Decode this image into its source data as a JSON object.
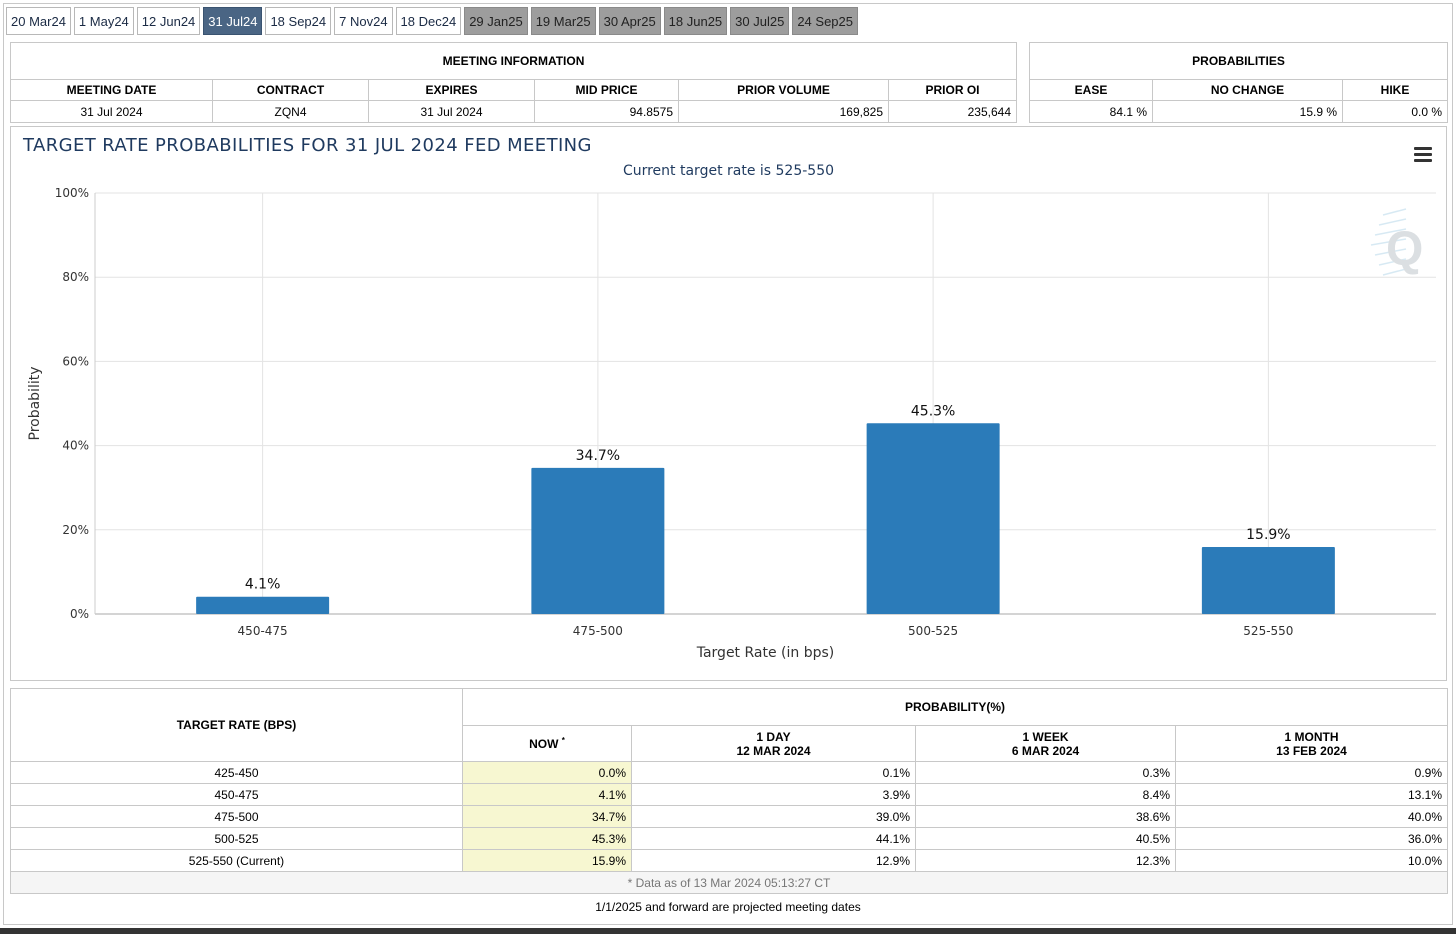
{
  "tabs": [
    {
      "label": "20 Mar24",
      "state": "normal"
    },
    {
      "label": "1 May24",
      "state": "normal"
    },
    {
      "label": "12 Jun24",
      "state": "normal"
    },
    {
      "label": "31 Jul24",
      "state": "active"
    },
    {
      "label": "18 Sep24",
      "state": "normal"
    },
    {
      "label": "7 Nov24",
      "state": "normal"
    },
    {
      "label": "18 Dec24",
      "state": "normal"
    },
    {
      "label": "29 Jan25",
      "state": "projected"
    },
    {
      "label": "19 Mar25",
      "state": "projected"
    },
    {
      "label": "30 Apr25",
      "state": "projected"
    },
    {
      "label": "18 Jun25",
      "state": "projected"
    },
    {
      "label": "30 Jul25",
      "state": "projected"
    },
    {
      "label": "24 Sep25",
      "state": "projected"
    }
  ],
  "meeting_info": {
    "title": "MEETING INFORMATION",
    "headers": [
      "MEETING DATE",
      "CONTRACT",
      "EXPIRES",
      "MID PRICE",
      "PRIOR VOLUME",
      "PRIOR OI"
    ],
    "values": [
      "31 Jul 2024",
      "ZQN4",
      "31 Jul 2024",
      "94.8575",
      "169,825",
      "235,644"
    ]
  },
  "probabilities": {
    "title": "PROBABILITIES",
    "headers": [
      "EASE",
      "NO CHANGE",
      "HIKE"
    ],
    "values": [
      "84.1 %",
      "15.9 %",
      "0.0 %"
    ]
  },
  "chart_data": {
    "type": "bar",
    "title": "TARGET RATE PROBABILITIES FOR 31 JUL 2024 FED MEETING",
    "subtitle": "Current target rate is 525-550",
    "xlabel": "Target Rate (in bps)",
    "ylabel": "Probability",
    "categories": [
      "450-475",
      "475-500",
      "500-525",
      "525-550"
    ],
    "values": [
      4.1,
      34.7,
      45.3,
      15.9
    ],
    "value_labels": [
      "4.1%",
      "34.7%",
      "45.3%",
      "15.9%"
    ],
    "ylim": [
      0,
      100
    ],
    "yticks": [
      0,
      20,
      40,
      60,
      80,
      100
    ],
    "ytick_labels": [
      "0%",
      "20%",
      "40%",
      "60%",
      "80%",
      "100%"
    ],
    "bar_color": "#2b7bb9",
    "grid": true,
    "legend": "none"
  },
  "rate_table": {
    "col0_header": "TARGET RATE (BPS)",
    "group_header": "PROBABILITY(%)",
    "sub_headers": [
      {
        "line1": "NOW",
        "line2": ""
      },
      {
        "line1": "1 DAY",
        "line2": "12 MAR 2024"
      },
      {
        "line1": "1 WEEK",
        "line2": "6 MAR 2024"
      },
      {
        "line1": "1 MONTH",
        "line2": "13 FEB 2024"
      }
    ],
    "now_marker": "*",
    "rows": [
      {
        "rate": "425-450",
        "now": "0.0%",
        "day": "0.1%",
        "week": "0.3%",
        "month": "0.9%"
      },
      {
        "rate": "450-475",
        "now": "4.1%",
        "day": "3.9%",
        "week": "8.4%",
        "month": "13.1%"
      },
      {
        "rate": "475-500",
        "now": "34.7%",
        "day": "39.0%",
        "week": "38.6%",
        "month": "40.0%"
      },
      {
        "rate": "500-525",
        "now": "45.3%",
        "day": "44.1%",
        "week": "40.5%",
        "month": "36.0%"
      },
      {
        "rate": "525-550 (Current)",
        "now": "15.9%",
        "day": "12.9%",
        "week": "12.3%",
        "month": "10.0%"
      }
    ],
    "data_note": "* Data as of 13 Mar 2024 05:13:27 CT"
  },
  "footer_note": "1/1/2025 and forward are projected meeting dates",
  "watermark": "Q"
}
